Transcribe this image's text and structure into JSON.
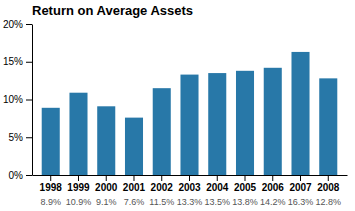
{
  "chart_data": {
    "type": "bar",
    "title": "Return on Average Assets",
    "categories": [
      "1998",
      "1999",
      "2000",
      "2001",
      "2002",
      "2003",
      "2004",
      "2005",
      "2006",
      "2007",
      "2008"
    ],
    "values": [
      8.9,
      10.9,
      9.1,
      7.6,
      11.5,
      13.3,
      13.5,
      13.8,
      14.2,
      16.3,
      12.8
    ],
    "value_labels": [
      "8.9%",
      "10.9%",
      "9.1%",
      "7.6%",
      "11.5%",
      "13.3%",
      "13.5%",
      "13.8%",
      "14.2%",
      "16.3%",
      "12.8%"
    ],
    "color": "#2878a8",
    "ylim": [
      0,
      20
    ],
    "yticks": [
      {
        "value": 0,
        "label": "0%"
      },
      {
        "value": 5,
        "label": "5%"
      },
      {
        "value": 10,
        "label": "10%"
      },
      {
        "value": 15,
        "label": "15%"
      },
      {
        "value": 20,
        "label": "20%"
      }
    ],
    "grid": false
  }
}
